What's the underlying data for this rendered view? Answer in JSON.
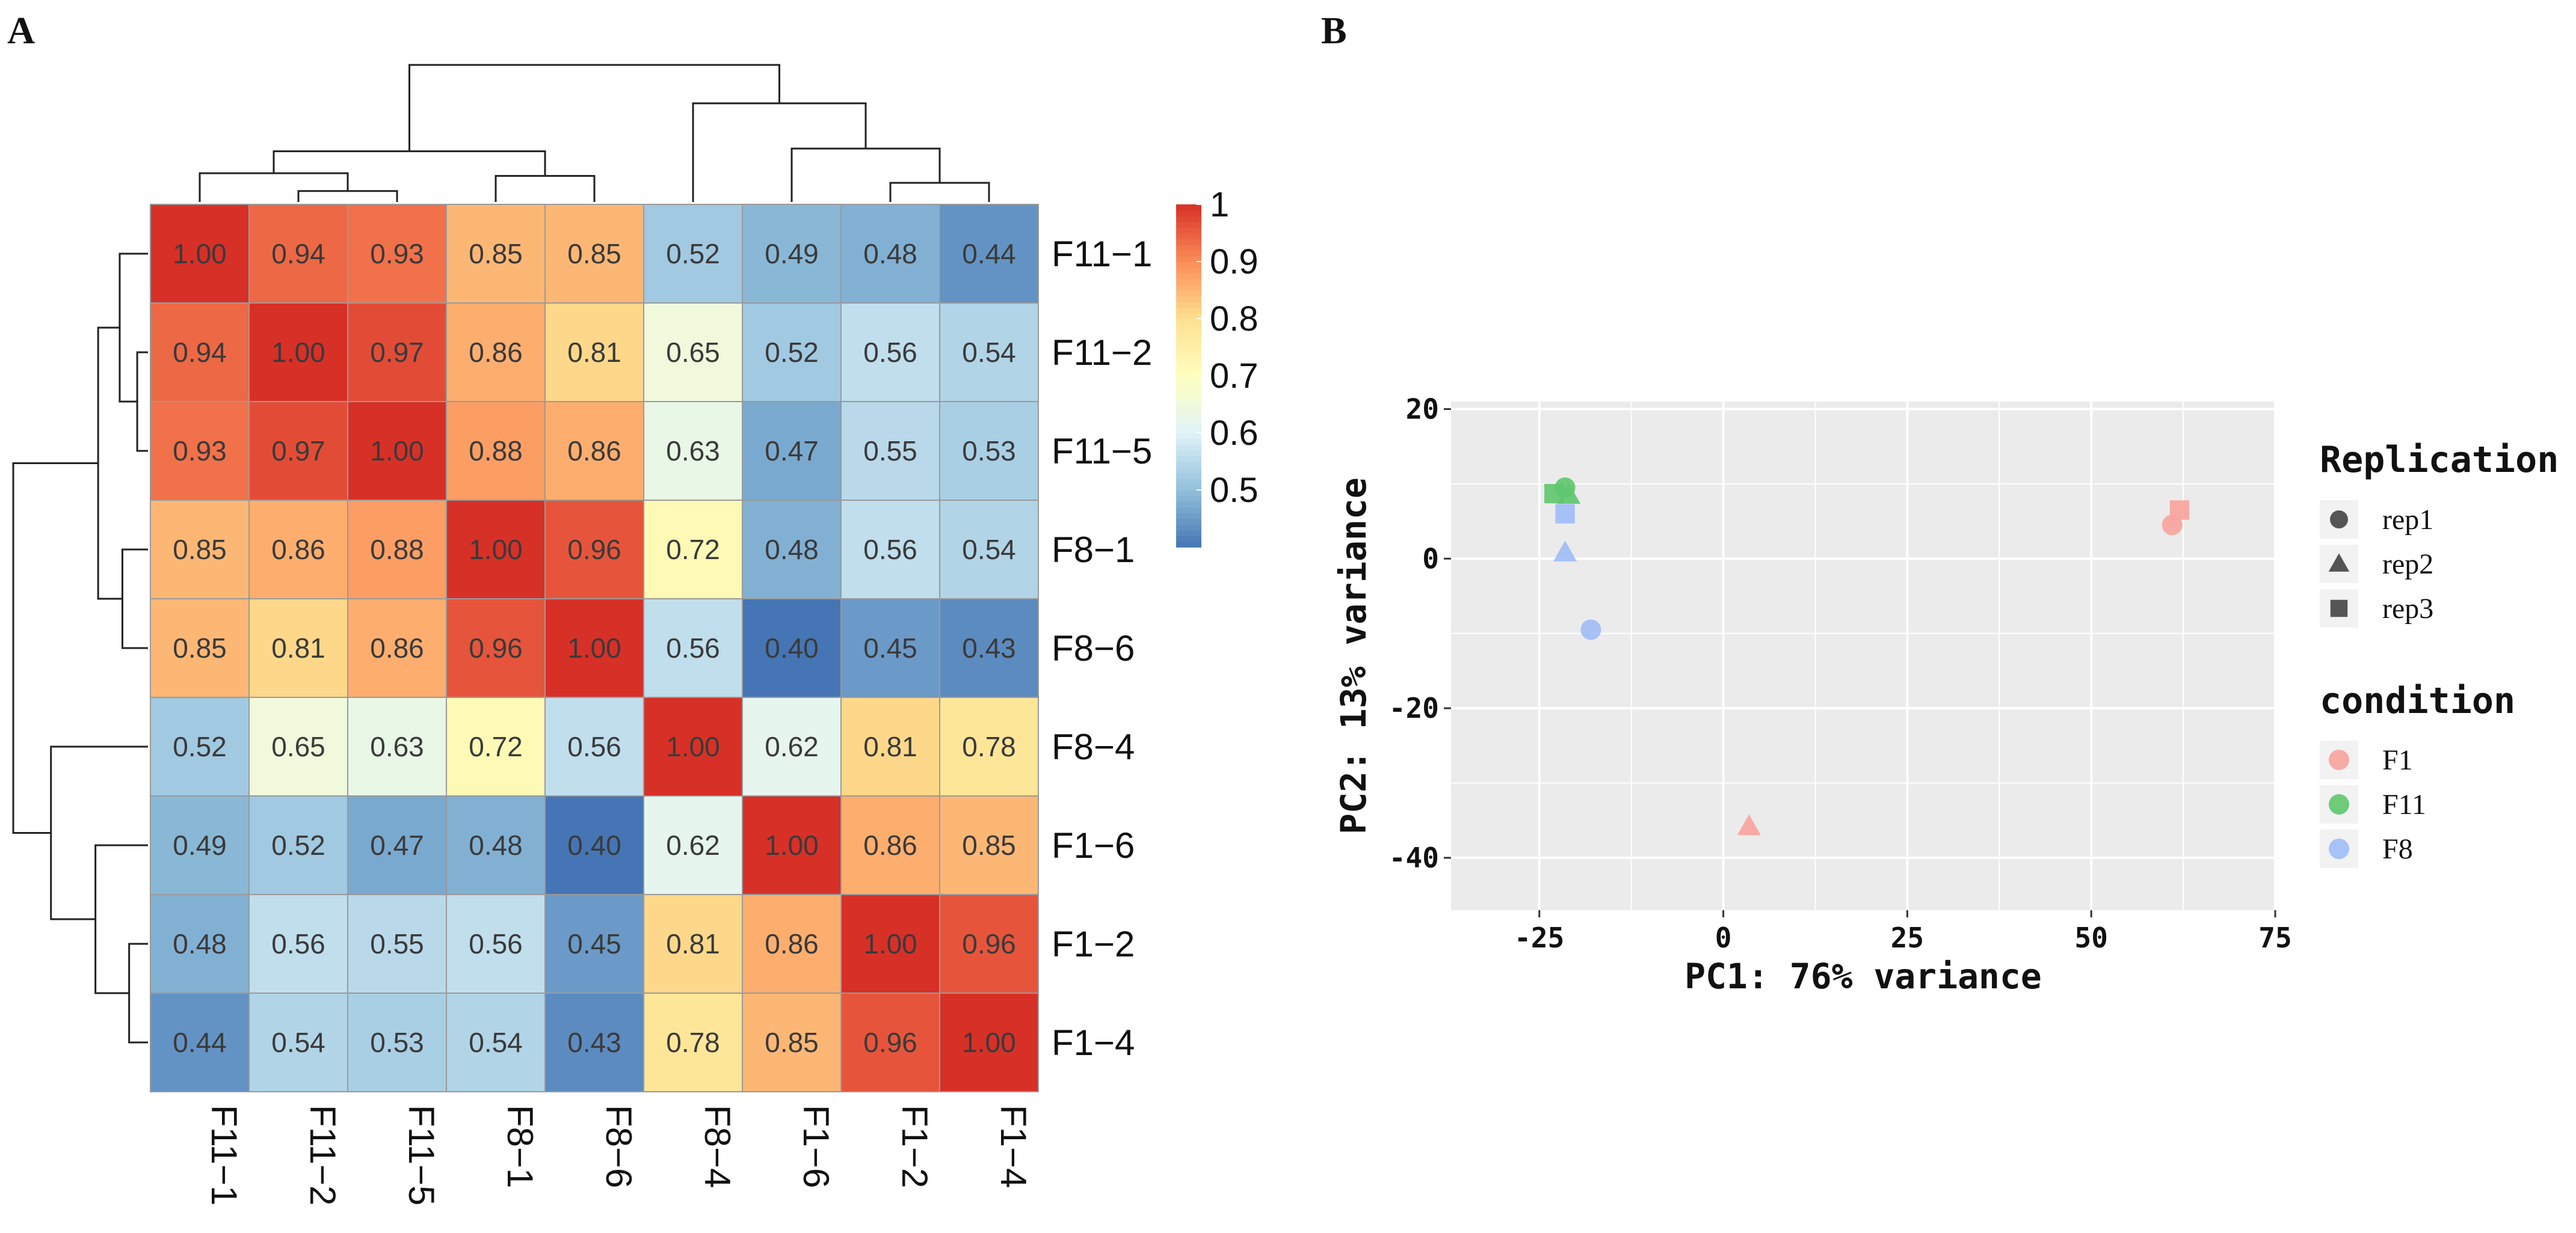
{
  "panels": {
    "a_label": "A",
    "b_label": "B"
  },
  "chart_data": [
    {
      "type": "heatmap",
      "panel": "A",
      "title": "",
      "rows": [
        "F11−1",
        "F11−2",
        "F11−5",
        "F8−1",
        "F8−6",
        "F8−4",
        "F1−6",
        "F1−2",
        "F1−4"
      ],
      "columns": [
        "F11−1",
        "F11−2",
        "F11−5",
        "F8−1",
        "F8−6",
        "F8−4",
        "F1−6",
        "F1−2",
        "F1−4"
      ],
      "values": [
        [
          1.0,
          0.94,
          0.93,
          0.85,
          0.85,
          0.52,
          0.49,
          0.48,
          0.44
        ],
        [
          0.94,
          1.0,
          0.97,
          0.86,
          0.81,
          0.65,
          0.52,
          0.56,
          0.54
        ],
        [
          0.93,
          0.97,
          1.0,
          0.88,
          0.86,
          0.63,
          0.47,
          0.55,
          0.53
        ],
        [
          0.85,
          0.86,
          0.88,
          1.0,
          0.96,
          0.72,
          0.48,
          0.56,
          0.54
        ],
        [
          0.85,
          0.81,
          0.86,
          0.96,
          1.0,
          0.56,
          0.4,
          0.45,
          0.43
        ],
        [
          0.52,
          0.65,
          0.63,
          0.72,
          0.56,
          1.0,
          0.62,
          0.81,
          0.78
        ],
        [
          0.49,
          0.52,
          0.47,
          0.48,
          0.4,
          0.62,
          1.0,
          0.86,
          0.85
        ],
        [
          0.48,
          0.56,
          0.55,
          0.56,
          0.45,
          0.81,
          0.86,
          1.0,
          0.96
        ],
        [
          0.44,
          0.54,
          0.53,
          0.54,
          0.43,
          0.78,
          0.85,
          0.96,
          1.0
        ]
      ],
      "value_format": "2 decimals",
      "colorbar": {
        "range": [
          0.4,
          1.0
        ],
        "ticks": [
          0.5,
          0.6,
          0.7,
          0.8,
          0.9,
          1.0
        ],
        "tick_labels": [
          "0.5",
          "0.6",
          "0.7",
          "0.8",
          "0.9",
          "1"
        ],
        "colors": [
          "#4575b4",
          "#91bfdb",
          "#e0f3f8",
          "#ffffbf",
          "#fee090",
          "#fc8d59",
          "#d73027"
        ]
      },
      "dendrogram": "hierarchical clustering on rows (left) and columns (top)"
    },
    {
      "type": "scatter",
      "panel": "B",
      "title": "",
      "xlabel": "PC1: 76% variance",
      "ylabel": "PC2: 13% variance",
      "xlim": [
        -37,
        75
      ],
      "ylim": [
        -47,
        21
      ],
      "xticks": [
        -25,
        0,
        25,
        50,
        75
      ],
      "yticks": [
        20,
        0,
        -20,
        -40
      ],
      "points": [
        {
          "condition": "F11",
          "replication": "rep1",
          "x": -21.5,
          "y": 9.5
        },
        {
          "condition": "F11",
          "replication": "rep2",
          "x": -21.0,
          "y": 8.5
        },
        {
          "condition": "F11",
          "replication": "rep3",
          "x": -23.0,
          "y": 8.7
        },
        {
          "condition": "F8",
          "replication": "rep1",
          "x": -18.0,
          "y": -9.5
        },
        {
          "condition": "F8",
          "replication": "rep2",
          "x": -21.5,
          "y": 0.8
        },
        {
          "condition": "F8",
          "replication": "rep3",
          "x": -21.5,
          "y": 6.0
        },
        {
          "condition": "F1",
          "replication": "rep1",
          "x": 61.0,
          "y": 4.5
        },
        {
          "condition": "F1",
          "replication": "rep2",
          "x": 3.5,
          "y": -35.8
        },
        {
          "condition": "F1",
          "replication": "rep3",
          "x": 62.0,
          "y": 6.5
        }
      ],
      "legend": {
        "shape_title": "Replication",
        "shapes": [
          {
            "label": "rep1",
            "shape": "circle"
          },
          {
            "label": "rep2",
            "shape": "triangle"
          },
          {
            "label": "rep3",
            "shape": "square"
          }
        ],
        "color_title": "condition",
        "conditions": [
          {
            "label": "F1",
            "color": "#f8a39b"
          },
          {
            "label": "F11",
            "color": "#5ec66d"
          },
          {
            "label": "F8",
            "color": "#9fbcf7"
          }
        ]
      },
      "colors": {
        "panel_bg": "#ebebeb",
        "grid": "#ffffff"
      }
    }
  ]
}
